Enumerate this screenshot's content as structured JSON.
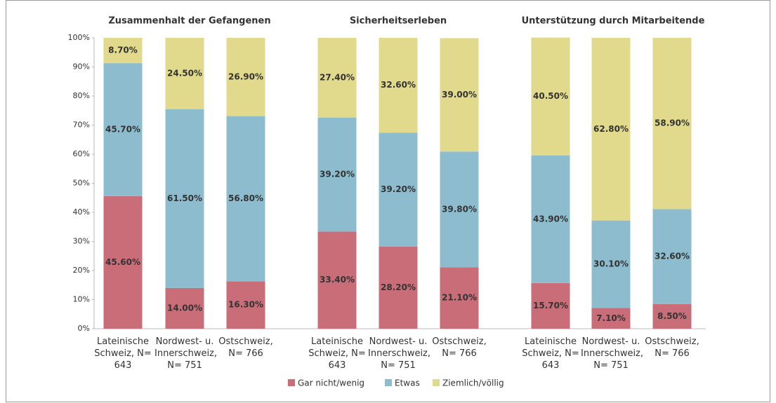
{
  "chart_data": {
    "type": "bar",
    "stacked": true,
    "group_titles": [
      "Zusammenhalt der Gefangenen",
      "Sicherheitserleben",
      "Unterstützung durch Mitarbeitende"
    ],
    "categories": [
      "Lateinische Schweiz, N= 643",
      "Nordwest- u. Innerschweiz, N= 751",
      "Ostschweiz, N= 766",
      "Lateinische Schweiz, N= 643",
      "Nordwest- u. Innerschweiz, N= 751",
      "Ostschweiz, N= 766",
      "Lateinische Schweiz, N= 643",
      "Nordwest- u. Innerschweiz, N= 751",
      "Ostschweiz, N= 766"
    ],
    "series": [
      {
        "name": "Gar nicht/wenig",
        "color": "#c96d79",
        "values": [
          45.6,
          14.0,
          16.3,
          33.4,
          28.2,
          21.1,
          15.7,
          7.1,
          8.5
        ],
        "value_labels": [
          "45.60%",
          "14.00%",
          "16.30%",
          "33.40%",
          "28.20%",
          "21.10%",
          "15.70%",
          "7.10%",
          "8.50%"
        ]
      },
      {
        "name": "Etwas",
        "color": "#8cbccd",
        "values": [
          45.7,
          61.5,
          56.8,
          39.2,
          39.2,
          39.8,
          43.9,
          30.1,
          32.6
        ],
        "value_labels": [
          "45.70%",
          "61.50%",
          "56.80%",
          "39.20%",
          "39.20%",
          "39.80%",
          "43.90%",
          "30.10%",
          "32.60%"
        ]
      },
      {
        "name": "Ziemlich/völlig",
        "color": "#e1d98b",
        "values": [
          8.7,
          24.5,
          26.9,
          27.4,
          32.6,
          39.0,
          40.5,
          62.8,
          58.9
        ],
        "value_labels": [
          "8.70%",
          "24.50%",
          "26.90%",
          "27.40%",
          "32.60%",
          "39.00%",
          "40.50%",
          "62.80%",
          "58.90%"
        ]
      }
    ],
    "ylim": [
      0,
      100
    ],
    "yticks": [
      {
        "value": 0,
        "label": "0%"
      },
      {
        "value": 10,
        "label": "10%"
      },
      {
        "value": 20,
        "label": "20%"
      },
      {
        "value": 30,
        "label": "30%"
      },
      {
        "value": 40,
        "label": "40%"
      },
      {
        "value": 50,
        "label": "50%"
      },
      {
        "value": 60,
        "label": "60%"
      },
      {
        "value": 70,
        "label": "70%"
      },
      {
        "value": 80,
        "label": "80%"
      },
      {
        "value": 90,
        "label": "90%"
      },
      {
        "value": 100,
        "label": "100%"
      }
    ],
    "legend": "bottom"
  }
}
